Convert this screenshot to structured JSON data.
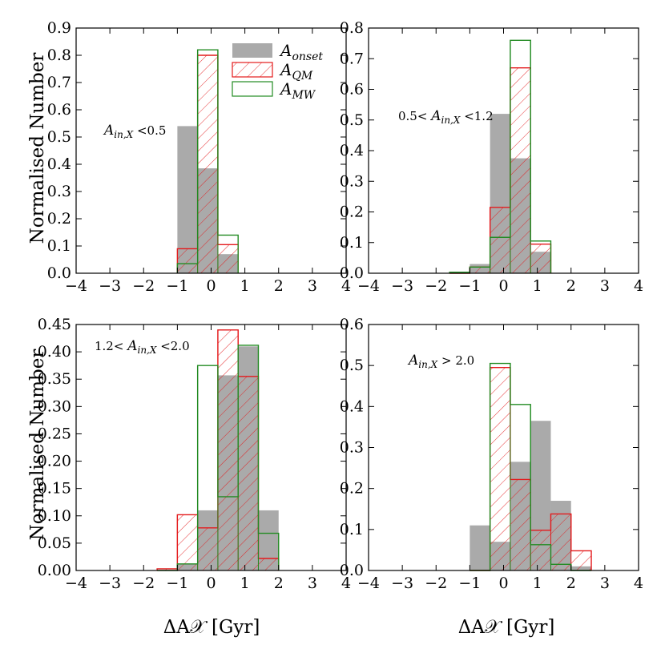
{
  "figure": {
    "xlabel": "ΔA𝒳 [Gyr]",
    "ylabel": "Normalised Number"
  },
  "legend": [
    {
      "key": "onset",
      "label": "A_onset",
      "base": "A",
      "sub": "onset",
      "style": "filled",
      "color": "#aaaaaa"
    },
    {
      "key": "qm",
      "label": "A_QM",
      "base": "A",
      "sub": "QM",
      "style": "hatched-outline",
      "color": "#e41a1c"
    },
    {
      "key": "mw",
      "label": "A_MW",
      "base": "A",
      "sub": "MW",
      "style": "outline",
      "color": "#228b22"
    }
  ],
  "colors": {
    "onset": "#aaaaaa",
    "qm": "#e41a1c",
    "mw": "#228b22"
  },
  "chart_data": [
    {
      "type": "bar",
      "panel": "top-left",
      "annotation": {
        "text": "A_in,X <0.5",
        "prefix": "",
        "base": "A",
        "sub": "in,X",
        "suffix": " <0.5"
      },
      "xlim": [
        -4,
        4
      ],
      "ylim": [
        0,
        0.9
      ],
      "xticks": [
        "−4",
        "−3",
        "−2",
        "−1",
        "0",
        "1",
        "2",
        "3",
        "4"
      ],
      "yticks": [
        "0.0",
        "0.1",
        "0.2",
        "0.3",
        "0.4",
        "0.5",
        "0.6",
        "0.7",
        "0.8",
        "0.9"
      ],
      "bin_edges": [
        -1.0,
        -0.4,
        0.2,
        0.8
      ],
      "series": [
        {
          "name": "A_onset",
          "key": "onset",
          "values": [
            0.54,
            0.385,
            0.07
          ]
        },
        {
          "name": "A_QM",
          "key": "qm",
          "values": [
            0.09,
            0.8,
            0.105
          ]
        },
        {
          "name": "A_MW",
          "key": "mw",
          "values": [
            0.035,
            0.82,
            0.14
          ]
        }
      ]
    },
    {
      "type": "bar",
      "panel": "top-right",
      "annotation": {
        "text": "0.5< A_in,X <1.2",
        "prefix": "0.5< ",
        "base": "A",
        "sub": "in,X",
        "suffix": " <1.2"
      },
      "xlim": [
        -4,
        4
      ],
      "ylim": [
        0,
        0.8
      ],
      "xticks": [
        "−4",
        "−3",
        "−2",
        "−1",
        "0",
        "1",
        "2",
        "3",
        "4"
      ],
      "yticks": [
        "0.0",
        "0.1",
        "0.2",
        "0.3",
        "0.4",
        "0.5",
        "0.6",
        "0.7",
        "0.8"
      ],
      "bin_edges": [
        -1.6,
        -1.0,
        -0.4,
        0.2,
        0.8,
        1.4
      ],
      "series": [
        {
          "name": "A_onset",
          "key": "onset",
          "values": [
            0.005,
            0.03,
            0.52,
            0.375,
            0.07
          ]
        },
        {
          "name": "A_QM",
          "key": "qm",
          "values": [
            0.0,
            0.02,
            0.215,
            0.67,
            0.095
          ]
        },
        {
          "name": "A_MW",
          "key": "mw",
          "values": [
            0.003,
            0.02,
            0.117,
            0.76,
            0.105
          ]
        }
      ]
    },
    {
      "type": "bar",
      "panel": "bottom-left",
      "annotation": {
        "text": "1.2< A_in,X <2.0",
        "prefix": "1.2< ",
        "base": "A",
        "sub": "in,X",
        "suffix": " <2.0"
      },
      "xlim": [
        -4,
        4
      ],
      "ylim": [
        0,
        0.45
      ],
      "xticks": [
        "−4",
        "−3",
        "−2",
        "−1",
        "0",
        "1",
        "2",
        "3",
        "4"
      ],
      "yticks": [
        "0.00",
        "0.05",
        "0.10",
        "0.15",
        "0.20",
        "0.25",
        "0.30",
        "0.35",
        "0.40",
        "0.45"
      ],
      "bin_edges": [
        -1.6,
        -1.0,
        -0.4,
        0.2,
        0.8,
        1.4,
        2.0
      ],
      "series": [
        {
          "name": "A_onset",
          "key": "onset",
          "values": [
            0.0,
            0.012,
            0.11,
            0.357,
            0.41,
            0.11
          ]
        },
        {
          "name": "A_QM",
          "key": "qm",
          "values": [
            0.003,
            0.102,
            0.078,
            0.44,
            0.355,
            0.022
          ]
        },
        {
          "name": "A_MW",
          "key": "mw",
          "values": [
            0.0,
            0.012,
            0.375,
            0.135,
            0.412,
            0.068
          ]
        }
      ]
    },
    {
      "type": "bar",
      "panel": "bottom-right",
      "annotation": {
        "text": "A_in,X > 2.0",
        "prefix": "",
        "base": "A",
        "sub": "in,X",
        "suffix": " > 2.0"
      },
      "xlim": [
        -4,
        4
      ],
      "ylim": [
        0,
        0.6
      ],
      "xticks": [
        "−4",
        "−3",
        "−2",
        "−1",
        "0",
        "1",
        "2",
        "3",
        "4"
      ],
      "yticks": [
        "0.0",
        "0.1",
        "0.2",
        "0.3",
        "0.4",
        "0.5",
        "0.6"
      ],
      "bin_edges": [
        -1.0,
        -0.4,
        0.2,
        0.8,
        1.4,
        2.0,
        2.6
      ],
      "series": [
        {
          "name": "A_onset",
          "key": "onset",
          "values": [
            0.11,
            0.07,
            0.265,
            0.365,
            0.17,
            0.01
          ]
        },
        {
          "name": "A_QM",
          "key": "qm",
          "values": [
            0.0,
            0.495,
            0.222,
            0.098,
            0.138,
            0.048
          ]
        },
        {
          "name": "A_MW",
          "key": "mw",
          "values": [
            0.0,
            0.505,
            0.405,
            0.063,
            0.015,
            0.0
          ]
        }
      ]
    }
  ]
}
